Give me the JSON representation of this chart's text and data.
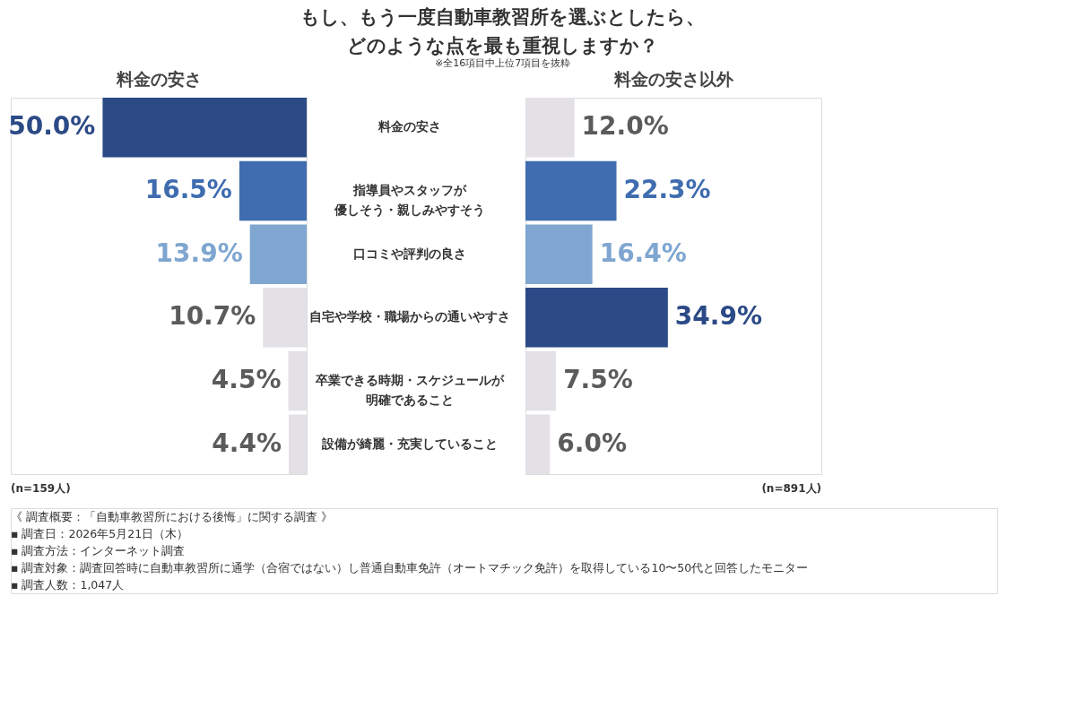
{
  "chart_data": [
    {
      "type": "other",
      "title": "もし、もう一度自動車教習所を選ぶとしたら、どのような点を最も重視しますか？",
      "subtitle": "※全16項目中上位7項目を抜粋"
    },
    {
      "type": "bar",
      "orientation": "horizontal",
      "title": "料金の安さ",
      "tick_labels": false,
      "categories": [
        "料金の安さ",
        "指導員やスタッフが優しそう・親しみやすそう",
        "口コミや評判の良さ",
        "自宅や学校・職場からの通いやすさ",
        "卒業できる時期・スケジュールが明確であること",
        "設備が綺麗・充実していること"
      ],
      "values": [
        50.0,
        16.5,
        13.9,
        10.7,
        4.5,
        4.4
      ],
      "value_labels": [
        "50.0%",
        "16.5%",
        "13.9%",
        "10.7%",
        "4.5%",
        "4.4%"
      ],
      "colors": [
        "#2b4a86",
        "#3f6daf",
        "#7ea6d0",
        "#e3e0e6",
        "#e3e0e6",
        "#e3e0e6"
      ],
      "annotations": [
        "(n=159人)"
      ]
    },
    {
      "type": "bar",
      "orientation": "horizontal",
      "title": "料金の安さ以外",
      "categories": [
        "料金の安さ",
        "指導員やスタッフが優しそう・親しみやすそう",
        "口コミや評判の良さ",
        "自宅や学校・職場からの通いやすさ",
        "卒業できる時期・スケジュールが明確であること",
        "設備が綺麗・充実していること"
      ],
      "values": [
        12.0,
        22.3,
        16.4,
        34.9,
        7.5,
        6.0
      ],
      "value_labels": [
        "12.0%",
        "22.3%",
        "16.4%",
        "34.9%",
        "7.5%",
        "6.0%"
      ],
      "colors": [
        "#e3e0e6",
        "#3f6daf",
        "#7ea6d0",
        "#2b4a86",
        "#e3e0e6",
        "#e3e0e6"
      ],
      "annotations": [
        "(n=891人)"
      ]
    },
    {
      "type": "other",
      "annotations": [
        "《 調査概要：「自動車教習所における後悔」に関する調査 》",
        "▪ 調査日：2026年5月21日（木）",
        "▪ 調査方法：インターネット調査",
        "▪ 調査対象：調査回答時に自動車教習所に通学（合宿ではない）し普通自動車免許（オートマチック免許）を取得している10〜50代と回答したモニター",
        "▪ 調査人数：1,047人"
      ]
    }
  ]
}
